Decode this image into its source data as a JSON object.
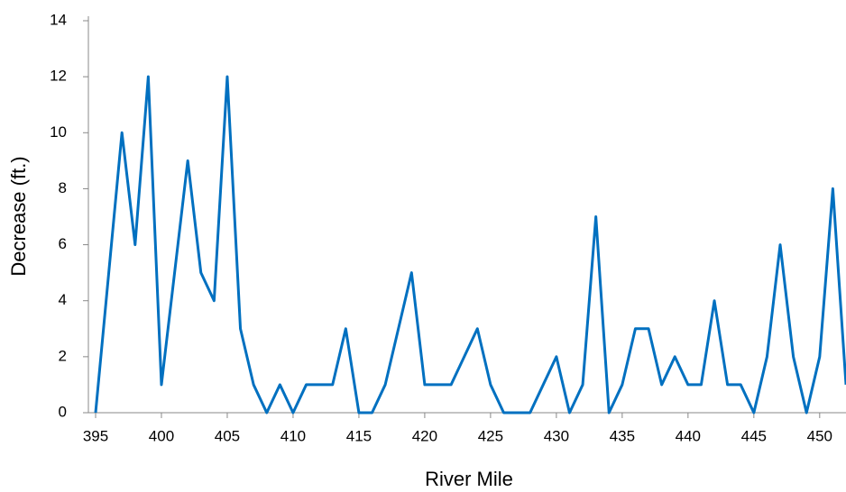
{
  "chart_data": {
    "type": "line",
    "x_label": "River Mile",
    "y_label": "Decrease (ft.)",
    "x": [
      395,
      396,
      397,
      398,
      399,
      400,
      401,
      402,
      403,
      404,
      405,
      406,
      407,
      408,
      409,
      410,
      411,
      412,
      413,
      414,
      415,
      416,
      417,
      418,
      419,
      420,
      421,
      422,
      423,
      424,
      425,
      426,
      427,
      428,
      429,
      430,
      431,
      432,
      433,
      434,
      435,
      436,
      437,
      438,
      439,
      440,
      441,
      442,
      443,
      444,
      445,
      446,
      447,
      448,
      449,
      450,
      451,
      452
    ],
    "series": [
      {
        "name": "Decrease",
        "color": "#0070c0",
        "values": [
          0,
          5,
          10,
          6,
          12,
          1,
          5,
          9,
          5,
          4,
          12,
          3,
          1,
          0,
          1,
          0,
          1,
          1,
          1,
          3,
          0,
          0,
          1,
          3,
          5,
          1,
          1,
          1,
          2,
          3,
          1,
          0,
          0,
          0,
          1,
          2,
          0,
          1,
          7,
          0,
          1,
          3,
          3,
          1,
          2,
          1,
          1,
          4,
          1,
          1,
          0,
          2,
          6,
          2,
          0,
          2,
          8,
          1
        ]
      }
    ],
    "xlim": [
      395,
      452
    ],
    "xticks": [
      395,
      400,
      405,
      410,
      415,
      420,
      425,
      430,
      435,
      440,
      445,
      450
    ],
    "ylim": [
      0,
      14
    ],
    "yticks": [
      0,
      2,
      4,
      6,
      8,
      10,
      12,
      14
    ]
  }
}
